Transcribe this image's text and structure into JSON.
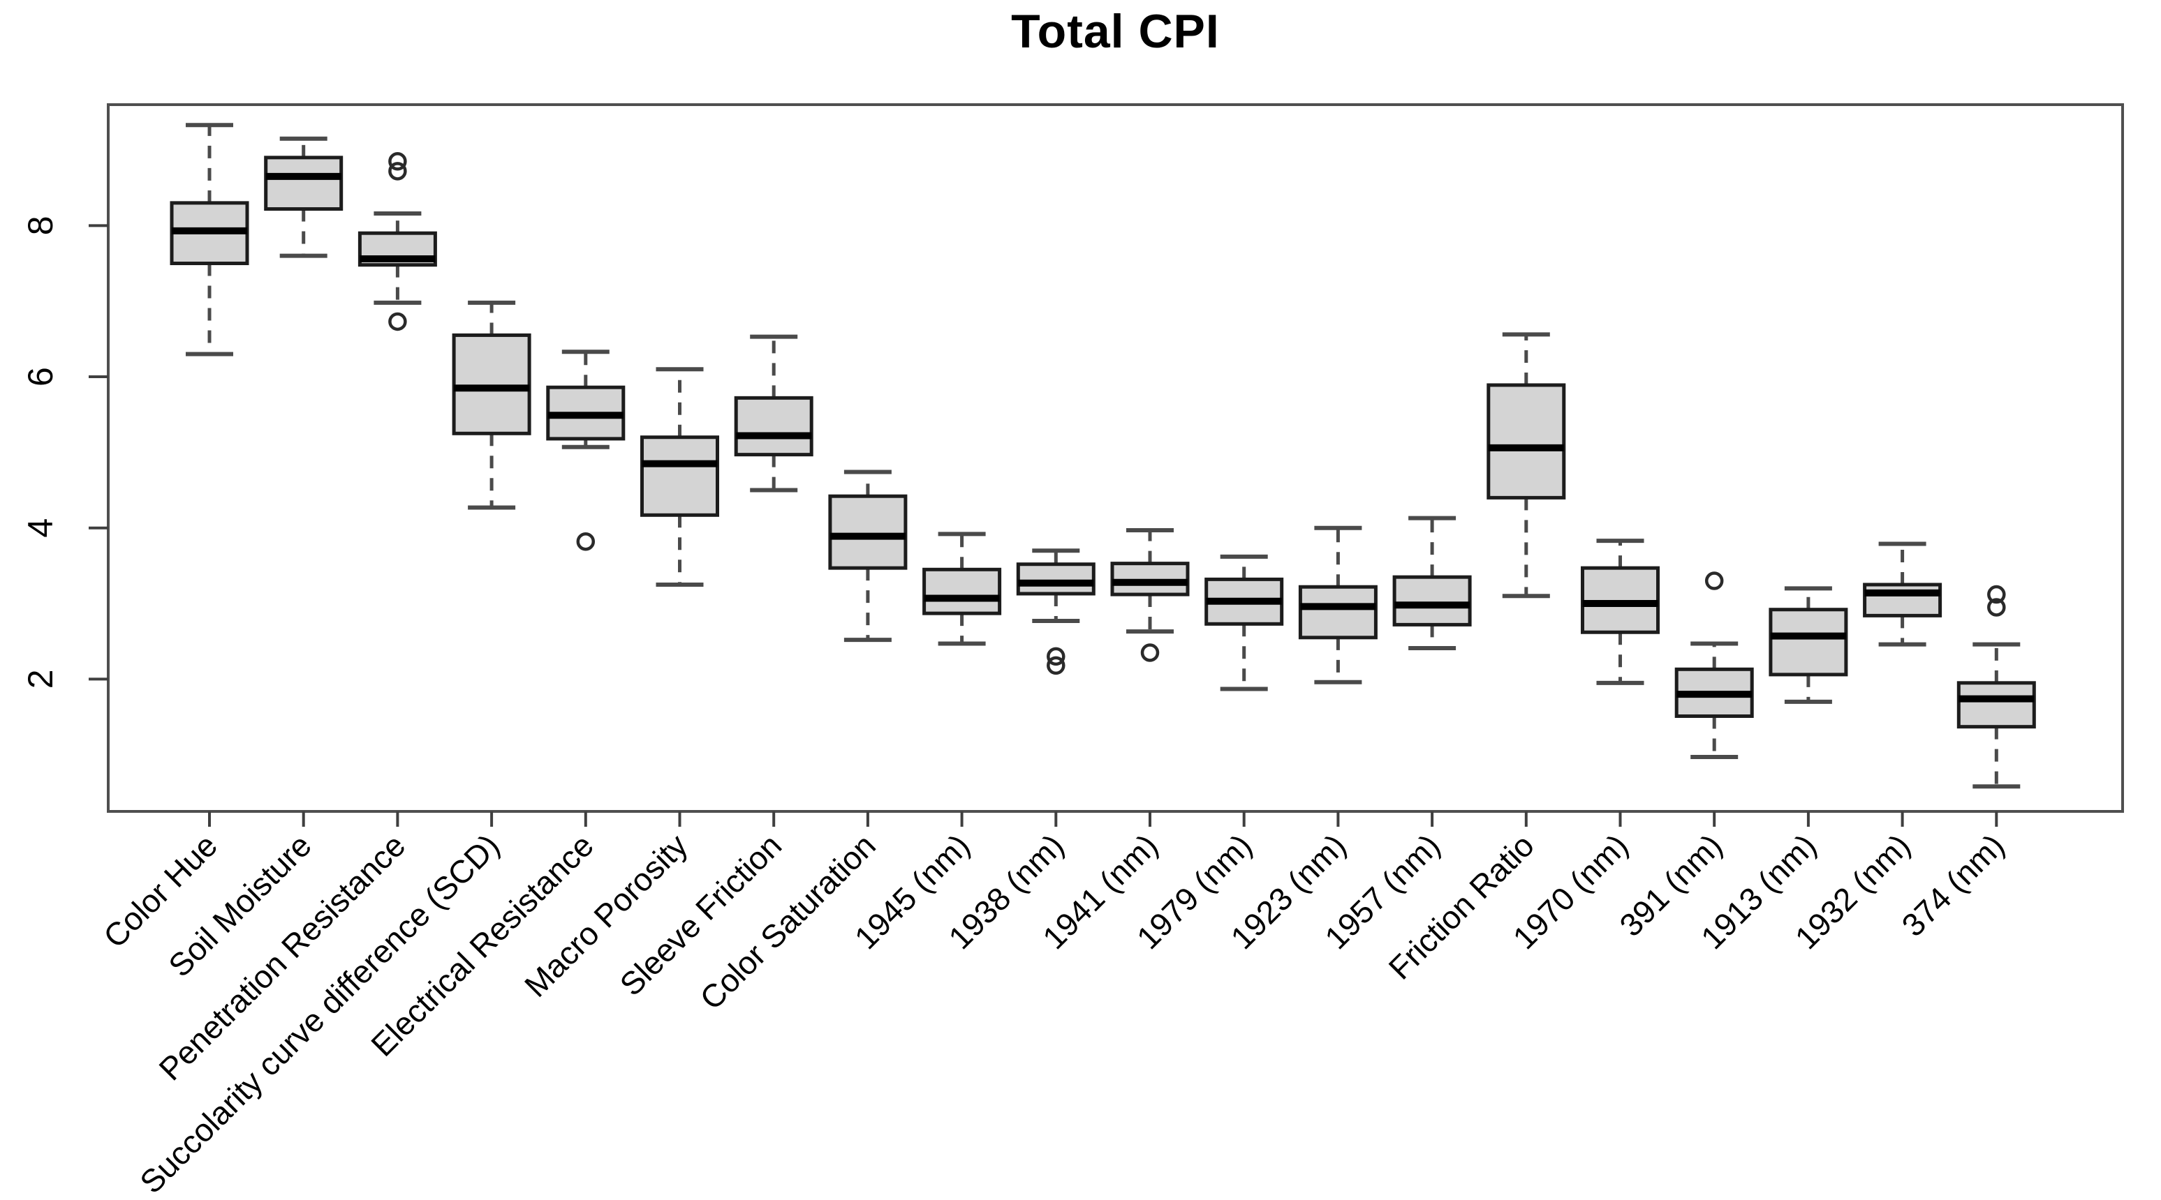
{
  "chart_data": {
    "type": "boxplot",
    "title": "Total CPI",
    "xlabel": "",
    "ylabel": "",
    "ylim": [
      0.25,
      9.6
    ],
    "yticks": [
      2,
      4,
      6,
      8
    ],
    "grid": false,
    "legend": null,
    "categories": [
      "Color Hue",
      "Soil Moisture",
      "Penetration Resistance",
      "Succolarity curve difference (SCD)",
      "Electrical Resistance",
      "Macro Porosity",
      "Sleeve Friction",
      "Color Saturation",
      "1945 (nm)",
      "1938 (nm)",
      "1941 (nm)",
      "1979 (nm)",
      "1923 (nm)",
      "1957 (nm)",
      "Friction Ratio",
      "1970 (nm)",
      "391 (nm)",
      "1913 (nm)",
      "1932 (nm)",
      "374 (nm)"
    ],
    "boxes": [
      {
        "label": "Color Hue",
        "whislo": 6.3,
        "q1": 7.5,
        "med": 7.93,
        "q3": 8.3,
        "whishi": 9.33,
        "outliers": []
      },
      {
        "label": "Soil Moisture",
        "whislo": 7.6,
        "q1": 8.22,
        "med": 8.65,
        "q3": 8.9,
        "whishi": 9.15,
        "outliers": []
      },
      {
        "label": "Penetration Resistance",
        "whislo": 6.98,
        "q1": 7.48,
        "med": 7.56,
        "q3": 7.9,
        "whishi": 8.16,
        "outliers": [
          8.85,
          8.72,
          6.73
        ]
      },
      {
        "label": "Succolarity curve difference (SCD)",
        "whislo": 4.27,
        "q1": 5.25,
        "med": 5.85,
        "q3": 6.55,
        "whishi": 6.98,
        "outliers": []
      },
      {
        "label": "Electrical Resistance",
        "whislo": 5.07,
        "q1": 5.18,
        "med": 5.49,
        "q3": 5.86,
        "whishi": 6.33,
        "outliers": [
          3.82
        ]
      },
      {
        "label": "Macro Porosity",
        "whislo": 3.25,
        "q1": 4.17,
        "med": 4.85,
        "q3": 5.2,
        "whishi": 6.1,
        "outliers": []
      },
      {
        "label": "Sleeve Friction",
        "whislo": 4.5,
        "q1": 4.97,
        "med": 5.22,
        "q3": 5.72,
        "whishi": 6.53,
        "outliers": []
      },
      {
        "label": "Color Saturation",
        "whislo": 2.52,
        "q1": 3.47,
        "med": 3.89,
        "q3": 4.42,
        "whishi": 4.74,
        "outliers": []
      },
      {
        "label": "1945 (nm)",
        "whislo": 2.47,
        "q1": 2.87,
        "med": 3.07,
        "q3": 3.45,
        "whishi": 3.92,
        "outliers": []
      },
      {
        "label": "1938 (nm)",
        "whislo": 2.77,
        "q1": 3.13,
        "med": 3.27,
        "q3": 3.52,
        "whishi": 3.7,
        "outliers": [
          2.3,
          2.18
        ]
      },
      {
        "label": "1941 (nm)",
        "whislo": 2.63,
        "q1": 3.12,
        "med": 3.28,
        "q3": 3.53,
        "whishi": 3.97,
        "outliers": [
          2.35
        ]
      },
      {
        "label": "1979 (nm)",
        "whislo": 1.87,
        "q1": 2.73,
        "med": 3.03,
        "q3": 3.32,
        "whishi": 3.62,
        "outliers": []
      },
      {
        "label": "1923 (nm)",
        "whislo": 1.96,
        "q1": 2.55,
        "med": 2.96,
        "q3": 3.22,
        "whishi": 4.0,
        "outliers": []
      },
      {
        "label": "1957 (nm)",
        "whislo": 2.41,
        "q1": 2.72,
        "med": 2.98,
        "q3": 3.35,
        "whishi": 4.13,
        "outliers": []
      },
      {
        "label": "Friction Ratio",
        "whislo": 3.1,
        "q1": 4.4,
        "med": 5.06,
        "q3": 5.89,
        "whishi": 6.56,
        "outliers": []
      },
      {
        "label": "1970 (nm)",
        "whislo": 1.95,
        "q1": 2.62,
        "med": 3.0,
        "q3": 3.47,
        "whishi": 3.83,
        "outliers": []
      },
      {
        "label": "391 (nm)",
        "whislo": 0.97,
        "q1": 1.51,
        "med": 1.8,
        "q3": 2.13,
        "whishi": 2.47,
        "outliers": [
          3.3
        ]
      },
      {
        "label": "1913 (nm)",
        "whislo": 1.7,
        "q1": 2.06,
        "med": 2.57,
        "q3": 2.92,
        "whishi": 3.2,
        "outliers": []
      },
      {
        "label": "1932 (nm)",
        "whislo": 2.46,
        "q1": 2.84,
        "med": 3.14,
        "q3": 3.25,
        "whishi": 3.79,
        "outliers": []
      },
      {
        "label": "374 (nm)",
        "whislo": 0.58,
        "q1": 1.37,
        "med": 1.74,
        "q3": 1.95,
        "whishi": 2.46,
        "outliers": [
          3.12,
          2.95
        ]
      }
    ],
    "colors": {
      "box_fill": "#d4d4d4",
      "box_border": "#1c1c1c",
      "median": "#000000",
      "whisker": "#4a4a4a",
      "outlier": "#2a2a2a",
      "frame": "#4f4f4f",
      "text": "#000000",
      "background": "#ffffff"
    }
  }
}
